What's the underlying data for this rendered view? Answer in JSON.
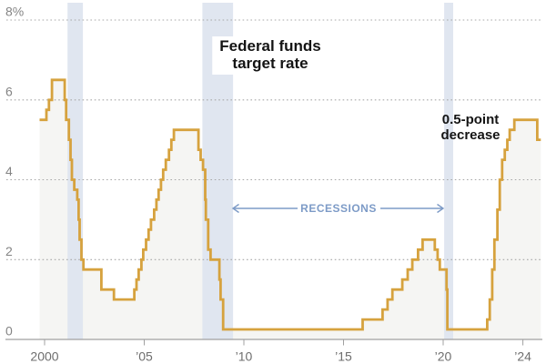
{
  "chart_data": {
    "type": "area",
    "title": "Federal funds target rate",
    "title_lines": [
      "Federal funds",
      "target rate"
    ],
    "annotation_lines": [
      "0.5-point",
      "decrease"
    ],
    "recessions_label": "RECESSIONS",
    "y_unit": "%",
    "xlim": [
      1999.75,
      2024.9
    ],
    "ylim": [
      0,
      8
    ],
    "end_year": 2024.9,
    "y_ticks": [
      {
        "value": 0,
        "label": "0"
      },
      {
        "value": 2,
        "label": "2"
      },
      {
        "value": 4,
        "label": "4"
      },
      {
        "value": 6,
        "label": "6"
      },
      {
        "value": 8,
        "label": "8%"
      }
    ],
    "x_ticks": [
      {
        "value": 2000,
        "label": "2000"
      },
      {
        "value": 2005,
        "label": "’05"
      },
      {
        "value": 2010,
        "label": "’10"
      },
      {
        "value": 2015,
        "label": "’15"
      },
      {
        "value": 2020,
        "label": "’20"
      },
      {
        "value": 2024,
        "label": "’24"
      }
    ],
    "recession_bands": [
      {
        "start": 2001.15,
        "end": 2001.92
      },
      {
        "start": 2007.92,
        "end": 2009.46
      },
      {
        "start": 2020.05,
        "end": 2020.5
      }
    ],
    "series": [
      {
        "name": "Federal funds target rate",
        "points": [
          [
            1999.75,
            5.5
          ],
          [
            2000.09,
            5.75
          ],
          [
            2000.22,
            6.0
          ],
          [
            2000.37,
            6.5
          ],
          [
            2001.01,
            6.0
          ],
          [
            2001.08,
            5.5
          ],
          [
            2001.22,
            5.0
          ],
          [
            2001.3,
            4.5
          ],
          [
            2001.37,
            4.0
          ],
          [
            2001.49,
            3.75
          ],
          [
            2001.64,
            3.5
          ],
          [
            2001.71,
            3.0
          ],
          [
            2001.76,
            2.5
          ],
          [
            2001.85,
            2.0
          ],
          [
            2001.95,
            1.75
          ],
          [
            2002.85,
            1.25
          ],
          [
            2003.48,
            1.0
          ],
          [
            2004.5,
            1.25
          ],
          [
            2004.61,
            1.5
          ],
          [
            2004.72,
            1.75
          ],
          [
            2004.86,
            2.0
          ],
          [
            2004.95,
            2.25
          ],
          [
            2005.09,
            2.5
          ],
          [
            2005.22,
            2.75
          ],
          [
            2005.34,
            3.0
          ],
          [
            2005.5,
            3.25
          ],
          [
            2005.61,
            3.5
          ],
          [
            2005.72,
            3.75
          ],
          [
            2005.84,
            4.0
          ],
          [
            2005.95,
            4.25
          ],
          [
            2006.08,
            4.5
          ],
          [
            2006.24,
            4.75
          ],
          [
            2006.36,
            5.0
          ],
          [
            2006.49,
            5.25
          ],
          [
            2007.72,
            4.75
          ],
          [
            2007.83,
            4.5
          ],
          [
            2007.95,
            4.25
          ],
          [
            2008.06,
            3.5
          ],
          [
            2008.09,
            3.0
          ],
          [
            2008.21,
            2.25
          ],
          [
            2008.33,
            2.0
          ],
          [
            2008.77,
            1.5
          ],
          [
            2008.83,
            1.0
          ],
          [
            2008.96,
            0.25
          ],
          [
            2015.96,
            0.5
          ],
          [
            2016.96,
            0.75
          ],
          [
            2017.21,
            1.0
          ],
          [
            2017.45,
            1.25
          ],
          [
            2017.95,
            1.5
          ],
          [
            2018.22,
            1.75
          ],
          [
            2018.45,
            2.0
          ],
          [
            2018.74,
            2.25
          ],
          [
            2018.97,
            2.5
          ],
          [
            2019.58,
            2.25
          ],
          [
            2019.72,
            2.0
          ],
          [
            2019.83,
            1.75
          ],
          [
            2020.17,
            1.25
          ],
          [
            2020.21,
            0.25
          ],
          [
            2022.21,
            0.5
          ],
          [
            2022.34,
            1.0
          ],
          [
            2022.46,
            1.75
          ],
          [
            2022.57,
            2.5
          ],
          [
            2022.72,
            3.25
          ],
          [
            2022.84,
            4.0
          ],
          [
            2022.96,
            4.5
          ],
          [
            2023.09,
            4.75
          ],
          [
            2023.22,
            5.0
          ],
          [
            2023.34,
            5.25
          ],
          [
            2023.57,
            5.5
          ],
          [
            2024.72,
            5.0
          ]
        ]
      }
    ],
    "colors": {
      "line": "#D6A23E",
      "fill": "#F5F5F3",
      "band": "#E0E6F0",
      "recession_text": "#7D9BC7",
      "grid": "#A8A8A8",
      "axis": "#A0A0A0",
      "x_tick_label": "#6E6E6E",
      "y_tick_label": "#848484",
      "annotation": "#141414"
    }
  }
}
